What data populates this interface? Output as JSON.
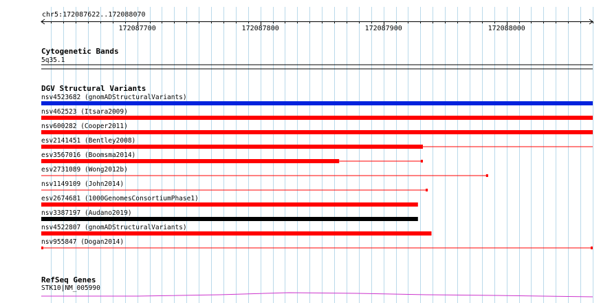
{
  "view": {
    "location": "chr5:172087622..172088070",
    "start": 172087622,
    "end": 172088070,
    "ruler_ticks": [
      {
        "pos": 172087700,
        "label": "172087700"
      },
      {
        "pos": 172087800,
        "label": "172087800"
      },
      {
        "pos": 172087900,
        "label": "172087900"
      },
      {
        "pos": 172088000,
        "label": "172088000"
      }
    ],
    "minor_tick_step": 10
  },
  "colors": {
    "grid": "#b9d9ea",
    "ruler": "#000000",
    "gnomad": "#0022dd",
    "variant_red": "#ff0000",
    "variant_black": "#000000",
    "refseq": "#cc33cc",
    "band_line": "#000000"
  },
  "tracks": {
    "cytoband": {
      "title": "Cytogenetic Bands",
      "band": "5q35.1"
    },
    "dgv": {
      "title": "DGV Structural Variants",
      "variants": [
        {
          "label": "nsv4523682 (gnomADStructuralVariants)",
          "start": 172087622,
          "end": 172088070,
          "style": "thick",
          "color": "gnomad"
        },
        {
          "label": "nsv462523 (Itsara2009)",
          "start": 172087622,
          "end": 172088070,
          "style": "thick",
          "color": "variant_red"
        },
        {
          "label": "nsv600282 (Cooper2011)",
          "start": 172087622,
          "end": 172088070,
          "style": "thick",
          "color": "variant_red"
        },
        {
          "label": "esv2141451 (Bentley2008)",
          "start": 172087622,
          "end": 172088070,
          "style": "mixed",
          "thick_end": 172087932,
          "color": "variant_red"
        },
        {
          "label": "esv3567016 (Boomsma2014)",
          "start": 172087622,
          "end": 172087932,
          "style": "mixed",
          "thick_end": 172087864,
          "color": "variant_red",
          "end_cap": true
        },
        {
          "label": "esv2731089 (Wong2012b)",
          "start": 172087622,
          "end": 172087985,
          "style": "thin",
          "color": "variant_red",
          "end_cap": true
        },
        {
          "label": "nsv1149109 (John2014)",
          "start": 172087622,
          "end": 172087936,
          "style": "thin",
          "color": "variant_red",
          "end_cap": true
        },
        {
          "label": "esv2674681 (1000GenomesConsortiumPhase1)",
          "start": 172087622,
          "end": 172087928,
          "style": "thick",
          "color": "variant_red"
        },
        {
          "label": "nsv3387197 (Audano2019)",
          "start": 172087622,
          "end": 172087928,
          "style": "thick",
          "color": "variant_black"
        },
        {
          "label": "nsv4522807 (gnomADStructuralVariants)",
          "start": 172087622,
          "end": 172087939,
          "style": "thick",
          "color": "variant_red"
        },
        {
          "label": "nsv955847 (Dogan2014)",
          "start": 172087622,
          "end": 172088070,
          "style": "thin",
          "color": "variant_red",
          "start_cap": true,
          "end_cap": true
        }
      ]
    },
    "refseq": {
      "title": "RefSeq Genes",
      "gene": "STK10|NM_005990"
    }
  }
}
